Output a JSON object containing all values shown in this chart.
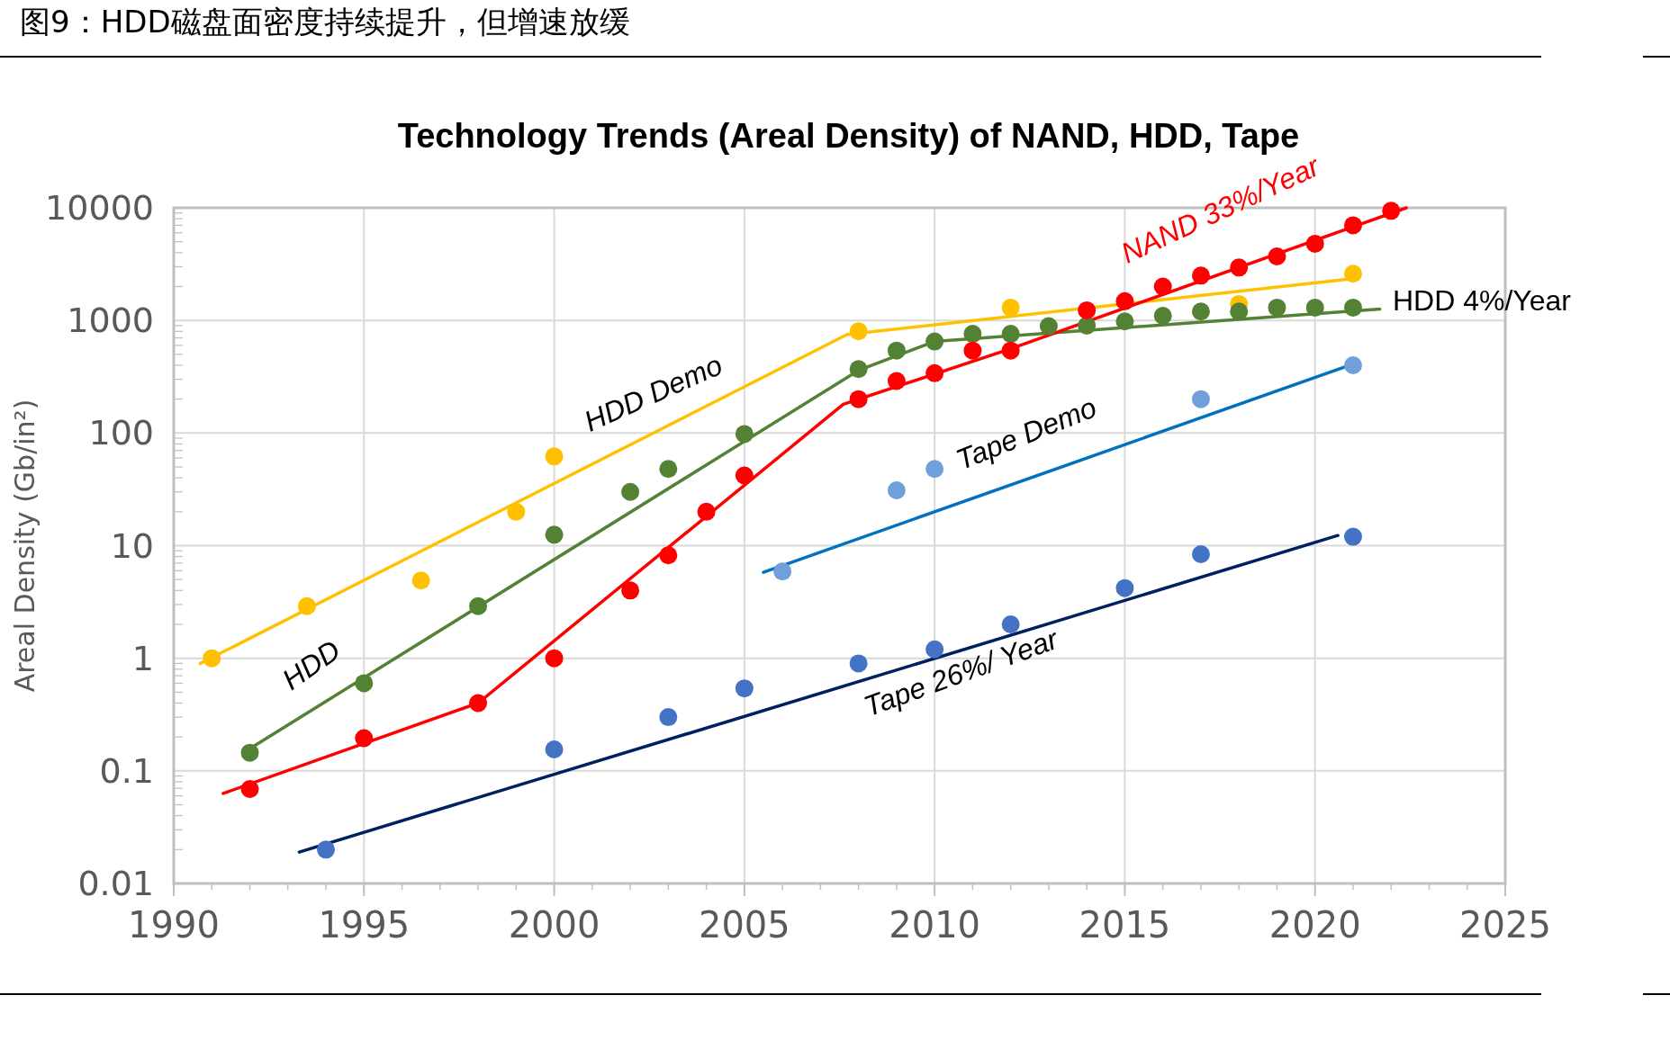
{
  "chart_data": {
    "type": "scatter",
    "title": "图9：HDD磁盘面密度持续提升，但增速放缓",
    "subtitle": "Technology Trends (Areal Density) of NAND, HDD, Tape",
    "ylabel": "Areal Density (Gb/in²)",
    "log": "y",
    "grid": true,
    "xlim": [
      1990,
      2025
    ],
    "xticks": [
      1990,
      1995,
      2000,
      2005,
      2010,
      2015,
      2020,
      2025
    ],
    "ylim": [
      0.01,
      10000
    ],
    "yticks": [
      0.01,
      0.1,
      1,
      10,
      100,
      1000,
      10000
    ],
    "series": [
      {
        "type": "line",
        "color": "#ffc000",
        "x": [
          1990.7,
          2007.7,
          2021
        ],
        "values": [
          0.9,
          750,
          2350
        ]
      },
      {
        "type": "line",
        "color": "#548235",
        "x": [
          1991.9,
          2008,
          2010,
          2021.7
        ],
        "values": [
          0.15,
          360,
          650,
          1260
        ]
      },
      {
        "type": "line",
        "color": "#ff0000",
        "x": [
          1991.3,
          1998,
          2007.6,
          2012,
          2022.4
        ],
        "values": [
          0.063,
          0.4,
          180,
          560,
          10000
        ]
      },
      {
        "type": "line",
        "color": "#0070c0",
        "x": [
          2005.5,
          2021
        ],
        "values": [
          5.8,
          410
        ]
      },
      {
        "type": "line",
        "color": "#002060",
        "x": [
          1993.3,
          2020.6
        ],
        "values": [
          0.019,
          12.3
        ]
      },
      {
        "color": "#ffc000",
        "x": [
          1991,
          1993.5,
          1996.5,
          1999,
          2000,
          2008,
          2012,
          2018,
          2021
        ],
        "values": [
          1,
          2.9,
          4.9,
          20,
          62,
          800,
          1300,
          1400,
          2600
        ]
      },
      {
        "color": "#548235",
        "x": [
          1992,
          1995,
          1998,
          2000,
          2002,
          2003,
          2005,
          2008,
          2009,
          2010,
          2011,
          2012,
          2013,
          2014,
          2015,
          2016,
          2017,
          2018,
          2019,
          2020,
          2021
        ],
        "values": [
          0.145,
          0.6,
          2.9,
          12.5,
          30,
          48,
          98,
          370,
          540,
          650,
          760,
          760,
          890,
          900,
          980,
          1100,
          1200,
          1200,
          1300,
          1300,
          1300
        ]
      },
      {
        "color": "#ff0000",
        "x": [
          1992,
          1995,
          1998,
          2000,
          2002,
          2003,
          2004,
          2005,
          2008,
          2009,
          2010,
          2011,
          2012,
          2014,
          2015,
          2016,
          2017,
          2018,
          2019,
          2020,
          2021,
          2022
        ],
        "values": [
          0.069,
          0.195,
          0.4,
          1.0,
          4.0,
          8.2,
          20,
          42,
          200,
          290,
          340,
          540,
          540,
          1230,
          1480,
          2000,
          2500,
          2950,
          3700,
          4800,
          7000,
          9400
        ]
      },
      {
        "color": "#6fa0dc",
        "x": [
          2006,
          2009,
          2010,
          2017,
          2021
        ],
        "values": [
          5.9,
          31,
          48,
          200,
          400
        ]
      },
      {
        "color": "#4472c4",
        "x": [
          1994,
          2000,
          2003,
          2005,
          2008,
          2010,
          2012,
          2015,
          2017,
          2021
        ],
        "values": [
          0.02,
          0.155,
          0.3,
          0.54,
          0.9,
          1.2,
          2.0,
          4.2,
          8.4,
          12
        ]
      }
    ],
    "annotations": [
      "HDD Demo",
      "HDD",
      "NAND 33%/Year",
      "HDD 4%/Year",
      "Tape Demo",
      "Tape   26%/ Year"
    ]
  }
}
